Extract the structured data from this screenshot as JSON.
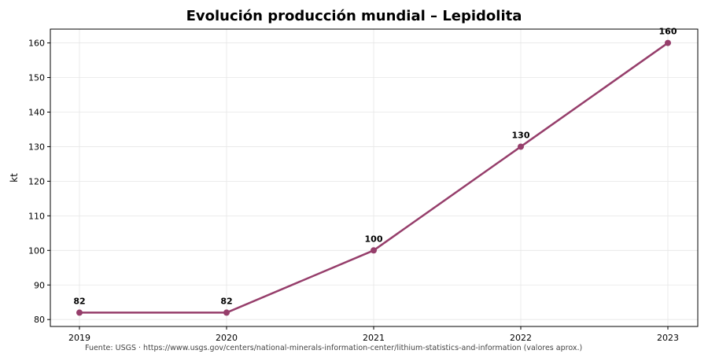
{
  "chart_data": {
    "type": "line",
    "title": "Evolución producción mundial – Lepidolita",
    "xlabel": "",
    "ylabel": "kt",
    "categories": [
      "2019",
      "2020",
      "2021",
      "2022",
      "2023"
    ],
    "series": [
      {
        "values": [
          82,
          82,
          100,
          130,
          160
        ]
      }
    ],
    "data_labels": [
      "82",
      "82",
      "100",
      "130",
      "160"
    ],
    "ylim": [
      78,
      164
    ],
    "yticks": [
      80,
      90,
      100,
      110,
      120,
      130,
      140,
      150,
      160
    ],
    "grid": true,
    "legend": "none",
    "colors": {
      "line": "#963e6b",
      "marker": "#963e6b",
      "grid": "#e6e6e6",
      "axis": "#000000"
    }
  },
  "footer": {
    "source": "Fuente: USGS · https://www.usgs.gov/centers/national-minerals-information-center/lithium-statistics-and-information (valores aprox.)"
  }
}
